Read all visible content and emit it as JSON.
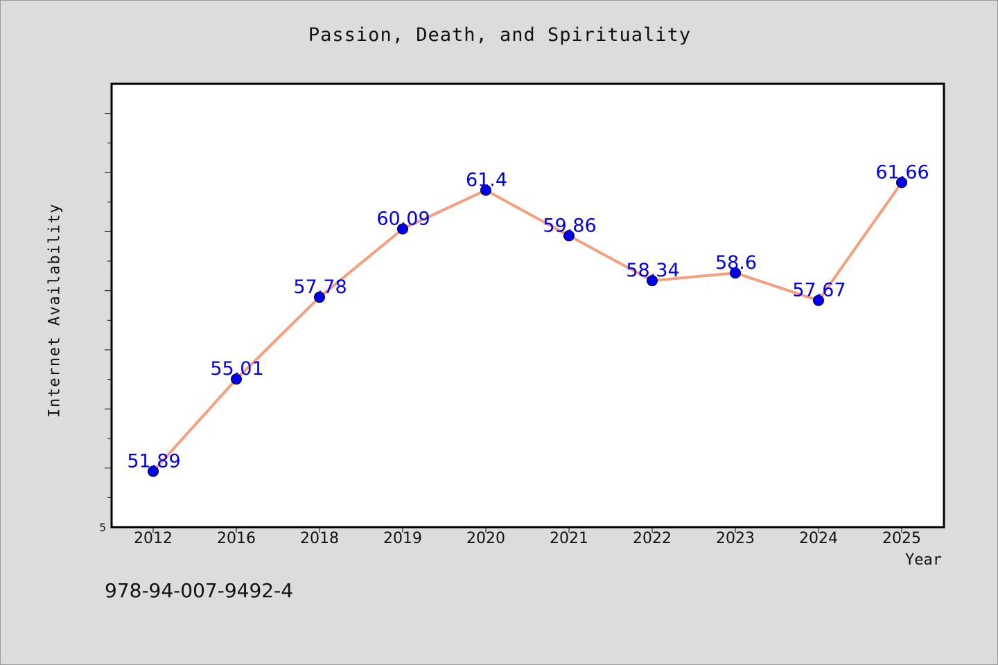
{
  "chart_data": {
    "type": "line",
    "title": "Passion, Death, and Spirituality",
    "xlabel": "Year",
    "ylabel": "Internet Availability",
    "categories": [
      "2012",
      "2016",
      "2018",
      "2019",
      "2020",
      "2021",
      "2022",
      "2023",
      "2024",
      "2025"
    ],
    "series": [
      {
        "values": [
          51.89,
          55.01,
          57.78,
          60.09,
          61.4,
          59.86,
          58.34,
          58.6,
          57.67,
          61.66
        ],
        "labels": [
          "51.89",
          "55.01",
          "57.78",
          "60.09",
          "61.4",
          "59.86",
          "58.34",
          "58.6",
          "57.67",
          "61.66"
        ]
      }
    ],
    "ylim": [
      50,
      65
    ],
    "y_tick_label": "5",
    "grid": false,
    "legend": "none",
    "colors": {
      "line": "#f4a07e",
      "marker": "#0000ee",
      "data_label": "#0000ee",
      "background": "#dcdcdc",
      "plot_background": "#ffffff"
    }
  },
  "footer": {
    "isbn": "978-94-007-9492-4"
  }
}
